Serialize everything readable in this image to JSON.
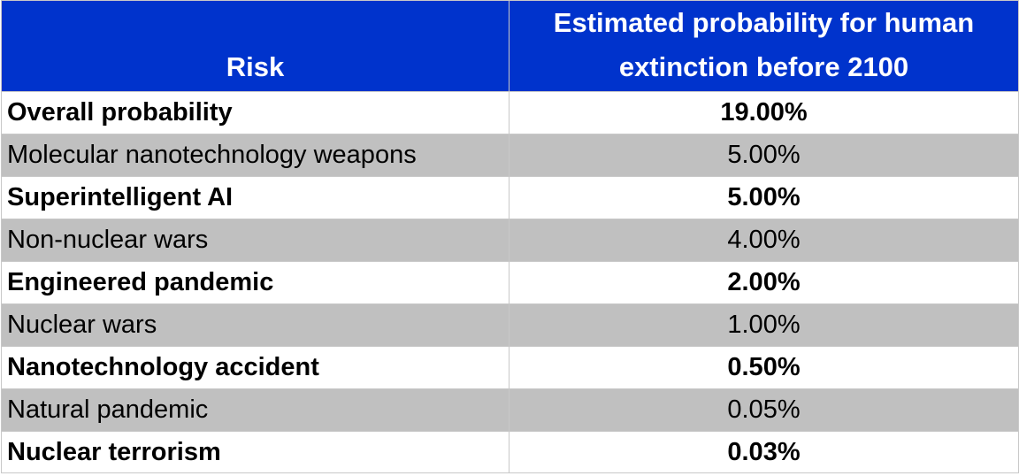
{
  "chart_data": {
    "type": "table",
    "columns": [
      "Risk",
      "Estimated probability for human extinction before 2100"
    ],
    "header_fill": "#0033CC",
    "shaded_fill": "#C0C0C0",
    "rows": [
      {
        "risk": "Overall probability",
        "probability": "19.00%",
        "value": 19.0,
        "bold": true
      },
      {
        "risk": "Molecular nanotechnology weapons",
        "probability": "5.00%",
        "value": 5.0,
        "bold": false
      },
      {
        "risk": "Superintelligent AI",
        "probability": "5.00%",
        "value": 5.0,
        "bold": true
      },
      {
        "risk": "Non-nuclear wars",
        "probability": "4.00%",
        "value": 4.0,
        "bold": false
      },
      {
        "risk": "Engineered pandemic",
        "probability": "2.00%",
        "value": 2.0,
        "bold": true
      },
      {
        "risk": "Nuclear wars",
        "probability": "1.00%",
        "value": 1.0,
        "bold": false
      },
      {
        "risk": "Nanotechnology accident",
        "probability": "0.50%",
        "value": 0.5,
        "bold": true
      },
      {
        "risk": "Natural pandemic",
        "probability": "0.05%",
        "value": 0.05,
        "bold": false
      },
      {
        "risk": "Nuclear terrorism",
        "probability": "0.03%",
        "value": 0.03,
        "bold": true
      }
    ]
  }
}
